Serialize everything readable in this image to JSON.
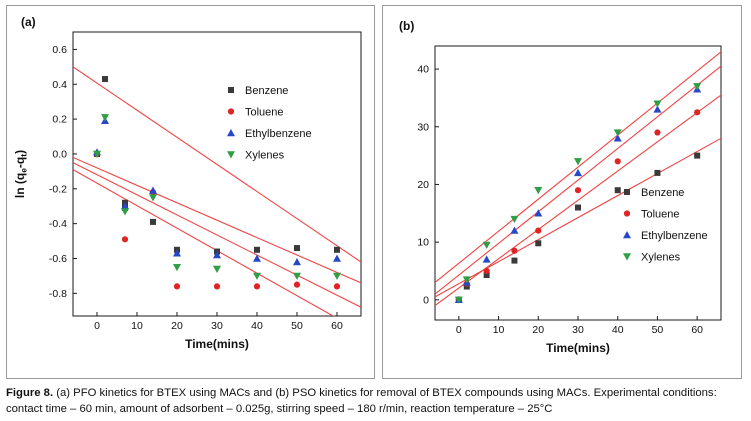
{
  "caption": {
    "label": "Figure 8.",
    "text": " (a) PFO kinetics for BTEX using MACs and (b) PSO kinetics for removal of BTEX compounds using MACs. Experimental conditions: contact time – 60 min, amount of adsorbent – 0.025g, stirring speed – 180 r/min, reaction temperature – 25°C"
  },
  "chart_data": [
    {
      "type": "scatter",
      "panel_label": "(a)",
      "title": "",
      "xlabel": "Time(mins)",
      "ylabel": "ln (qe-qt)",
      "ylabel_parts": [
        {
          "t": "ln (q"
        },
        {
          "t": "e",
          "sub": true
        },
        {
          "t": "-q"
        },
        {
          "t": "t",
          "sub": true
        },
        {
          "t": ")"
        }
      ],
      "xlim": [
        -6,
        66
      ],
      "ylim": [
        -0.93,
        0.7
      ],
      "xticks": [
        0,
        10,
        20,
        30,
        40,
        50,
        60
      ],
      "xtick_labels": [
        "0",
        "10",
        "20",
        "30",
        "40",
        "50",
        "60"
      ],
      "yticks": [
        0.6,
        0.4,
        0.2,
        0.0,
        -0.2,
        -0.4,
        -0.6,
        -0.8
      ],
      "ytick_labels": [
        "0.6",
        "0.4",
        "0.2",
        "0.0",
        "-0.2",
        "-0.4",
        "-0.6",
        "-0.8"
      ],
      "grid": false,
      "legend_position": "inside-right-top",
      "fit_line_color": "#f04343",
      "fit_lines": [
        {
          "x": [
            -6,
            66
          ],
          "y": [
            0.5,
            -0.62
          ]
        },
        {
          "x": [
            -6,
            66
          ],
          "y": [
            -0.02,
            -0.74
          ]
        },
        {
          "x": [
            -6,
            66
          ],
          "y": [
            -0.05,
            -0.88
          ]
        },
        {
          "x": [
            -6,
            66
          ],
          "y": [
            -0.09,
            -1.02
          ]
        }
      ],
      "series": [
        {
          "name": "Benzene",
          "marker": "square",
          "color": "#3a3a3a",
          "x": [
            0,
            2,
            7,
            7,
            14,
            20,
            30,
            40,
            50,
            60
          ],
          "y": [
            0.0,
            0.43,
            -0.28,
            -0.31,
            -0.39,
            -0.55,
            -0.56,
            -0.55,
            -0.54,
            -0.55
          ]
        },
        {
          "name": "Toluene",
          "marker": "circle",
          "color": "#e02424",
          "x": [
            0,
            7,
            14,
            20,
            30,
            40,
            50,
            60
          ],
          "y": [
            0.0,
            -0.49,
            -0.22,
            -0.76,
            -0.76,
            -0.76,
            -0.75,
            -0.76
          ]
        },
        {
          "name": "Ethylbenzene",
          "marker": "triangle-up",
          "color": "#2747c9",
          "x": [
            0,
            2,
            7,
            14,
            20,
            30,
            40,
            50,
            60
          ],
          "y": [
            0.01,
            0.19,
            -0.3,
            -0.21,
            -0.57,
            -0.58,
            -0.6,
            -0.62,
            -0.6
          ]
        },
        {
          "name": "Xylenes",
          "marker": "triangle-down",
          "color": "#2f9e44",
          "x": [
            0,
            2,
            7,
            14,
            20,
            30,
            40,
            50,
            60
          ],
          "y": [
            0.0,
            0.21,
            -0.33,
            -0.25,
            -0.65,
            -0.66,
            -0.7,
            -0.7,
            -0.7
          ]
        }
      ]
    },
    {
      "type": "scatter",
      "panel_label": "(b)",
      "title": "",
      "xlabel": "Time(mins)",
      "ylabel": "",
      "xlim": [
        -6,
        66
      ],
      "ylim": [
        -3.5,
        44
      ],
      "xticks": [
        0,
        10,
        20,
        30,
        40,
        50,
        60
      ],
      "xtick_labels": [
        "0",
        "10",
        "20",
        "30",
        "40",
        "50",
        "60"
      ],
      "yticks": [
        0,
        10,
        20,
        30,
        40
      ],
      "ytick_labels": [
        "0",
        "10",
        "20",
        "30",
        "40"
      ],
      "grid": false,
      "legend_position": "inside-right-middle",
      "fit_line_color": "#f04343",
      "fit_lines": [
        {
          "x": [
            -6,
            66
          ],
          "y": [
            0.5,
            28
          ]
        },
        {
          "x": [
            -6,
            66
          ],
          "y": [
            -1,
            35.5
          ]
        },
        {
          "x": [
            -6,
            66
          ],
          "y": [
            1,
            40.5
          ]
        },
        {
          "x": [
            -6,
            66
          ],
          "y": [
            3,
            43
          ]
        }
      ],
      "series": [
        {
          "name": "Benzene",
          "marker": "square",
          "color": "#3a3a3a",
          "x": [
            0,
            2,
            7,
            14,
            20,
            30,
            40,
            50,
            60
          ],
          "y": [
            0,
            2.3,
            4.3,
            6.8,
            9.8,
            16,
            19,
            22,
            25
          ]
        },
        {
          "name": "Toluene",
          "marker": "circle",
          "color": "#e02424",
          "x": [
            0,
            2,
            7,
            14,
            20,
            30,
            40,
            50,
            60
          ],
          "y": [
            0,
            2.8,
            5,
            8.5,
            12,
            19,
            24,
            29,
            32.5
          ]
        },
        {
          "name": "Ethylbenzene",
          "marker": "triangle-up",
          "color": "#2747c9",
          "x": [
            0,
            2,
            7,
            14,
            20,
            30,
            40,
            50,
            60
          ],
          "y": [
            0,
            3,
            7,
            12,
            15,
            22,
            28,
            33,
            36.5
          ]
        },
        {
          "name": "Xylenes",
          "marker": "triangle-down",
          "color": "#2f9e44",
          "x": [
            0,
            2,
            7,
            14,
            20,
            30,
            40,
            50,
            60
          ],
          "y": [
            0,
            3.5,
            9.5,
            14,
            19,
            24,
            29,
            34,
            37
          ]
        }
      ]
    }
  ]
}
